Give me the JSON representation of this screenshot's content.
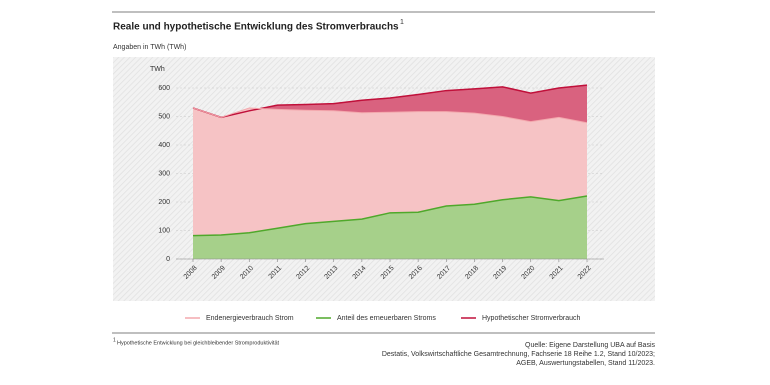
{
  "chart_data": {
    "type": "area",
    "title": "Reale und hypothetische Entwicklung des Stromverbrauchs",
    "title_footnote_marker": "1",
    "subtitle": "Angaben in TWh (TWh)",
    "y_axis_label": "TWh",
    "categories": [
      "2008",
      "2009",
      "2010",
      "2011",
      "2012",
      "2013",
      "2014",
      "2015",
      "2016",
      "2017",
      "2018",
      "2019",
      "2020",
      "2021",
      "2022"
    ],
    "series": [
      {
        "name": "Hypothetischer Stromverbrauch",
        "color": "#c0103a",
        "fill": "#d9627f",
        "values": [
          530,
          497,
          520,
          540,
          542,
          545,
          557,
          565,
          577,
          591,
          597,
          604,
          582,
          600,
          610
        ]
      },
      {
        "name": "Endenergieverbrauch Strom",
        "color": "#f3a8ad",
        "fill": "#f6c3c5",
        "values": [
          530,
          497,
          530,
          525,
          522,
          520,
          513,
          515,
          517,
          517,
          512,
          500,
          482,
          497,
          478
        ]
      },
      {
        "name": "Anteil des erneuerbaren Stroms",
        "color": "#4fa82b",
        "fill": "#a6d08a",
        "values": [
          82,
          84,
          92,
          108,
          124,
          132,
          140,
          162,
          164,
          186,
          192,
          208,
          218,
          205,
          221
        ]
      }
    ],
    "legend_order": [
      1,
      2,
      0
    ],
    "ylim": [
      0,
      600
    ],
    "yticks": [
      0,
      100,
      200,
      300,
      400,
      500,
      600
    ],
    "grid": true,
    "footnote_marker": "1",
    "footnote": "Hypothetische Entwicklung bei gleichbleibender Stromproduktivität",
    "source": [
      "Quelle: Eigene Darstellung UBA auf Basis",
      "Destatis, Volkswirtschaftliche Gesamtrechnung, Fachserie 18 Reihe 1.2, Stand 10/2023;",
      "AGEB, Auswertungstabellen, Stand 11/2023."
    ]
  }
}
